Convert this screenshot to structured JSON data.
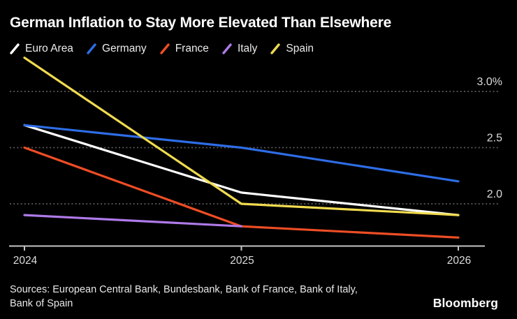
{
  "chart": {
    "title": "German Inflation to Stay More Elevated Than Elsewhere"
  },
  "chart_data": {
    "type": "line",
    "title": "German Inflation to Stay More Elevated Than Elsewhere",
    "x_labels": [
      "2024",
      "2025",
      "2026"
    ],
    "x_values": [
      2024,
      2025,
      2026
    ],
    "ylabel": "",
    "xlabel": "",
    "ylim": [
      1.55,
      3.35
    ],
    "grid": "horizontal-dotted",
    "legend_position": "top",
    "yticks": [
      {
        "value": 3.0,
        "label": "3.0%"
      },
      {
        "value": 2.5,
        "label": "2.5"
      },
      {
        "value": 2.0,
        "label": "2.0"
      }
    ],
    "series": [
      {
        "name": "Euro Area",
        "color": "#ffffff",
        "x": [
          2024,
          2025,
          2026
        ],
        "values": [
          2.7,
          2.1,
          1.9
        ]
      },
      {
        "name": "Germany",
        "color": "#2e6de6",
        "x": [
          2024,
          2025,
          2026
        ],
        "values": [
          2.7,
          2.5,
          2.2
        ]
      },
      {
        "name": "France",
        "color": "#ee4d25",
        "x": [
          2024,
          2025,
          2026
        ],
        "values": [
          2.5,
          1.8,
          1.7
        ]
      },
      {
        "name": "Italy",
        "color": "#ae7ae8",
        "x": [
          2024,
          2025
        ],
        "values": [
          1.9,
          1.8
        ]
      },
      {
        "name": "Spain",
        "color": "#f0db4f",
        "x": [
          2024,
          2025,
          2026
        ],
        "values": [
          3.3,
          2.0,
          1.9
        ]
      }
    ]
  },
  "footer": {
    "sources_line1": "Sources: European Central Bank, Bundesbank, Bank of France, Bank of Italy,",
    "sources_line2": "Bank of Spain",
    "brand": "Bloomberg"
  },
  "style_colors": {
    "background": "#000000",
    "gridline": "#5c5c5c",
    "axis": "#c4c4c4",
    "tick_label": "#dcdcdc",
    "legend_text": "#ececec"
  }
}
